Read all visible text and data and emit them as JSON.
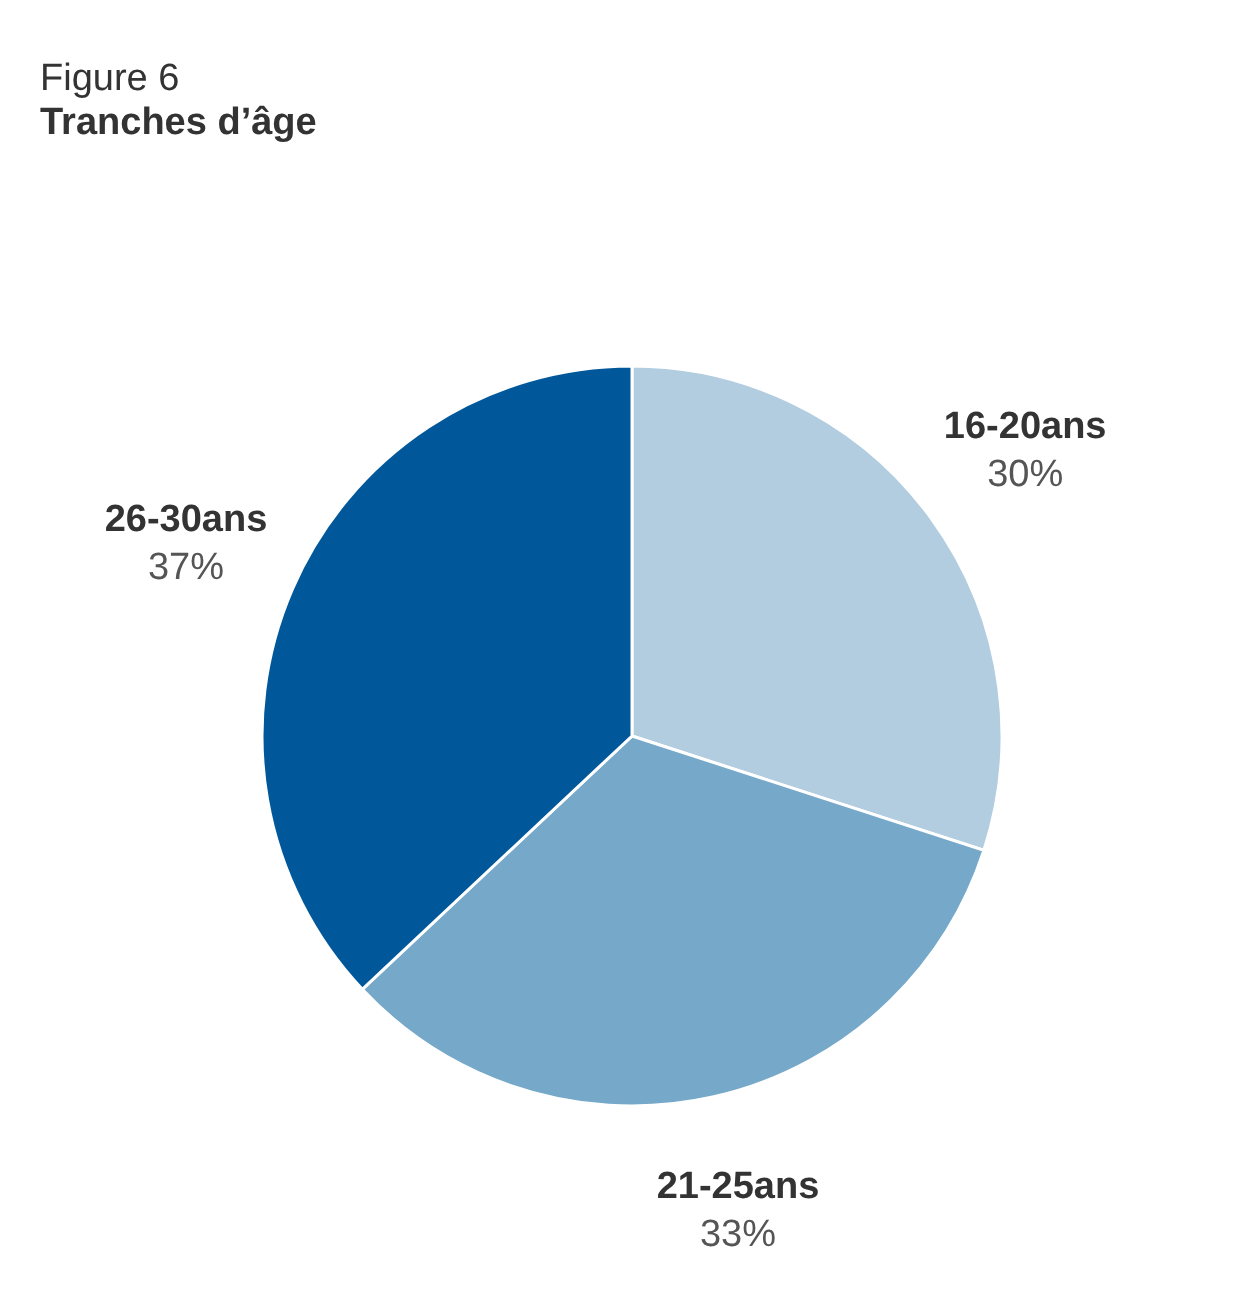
{
  "chart_data": {
    "type": "pie",
    "title": "Figure 6",
    "subtitle": "Tranches d’âge",
    "categories": [
      "16-20ans",
      "21-25ans",
      "26-30ans"
    ],
    "values": [
      30,
      33,
      37
    ],
    "colors": [
      "#b3cde0",
      "#75a8c9",
      "#00589b"
    ],
    "value_labels": [
      "30%",
      "33%",
      "37%"
    ],
    "legend": false
  }
}
